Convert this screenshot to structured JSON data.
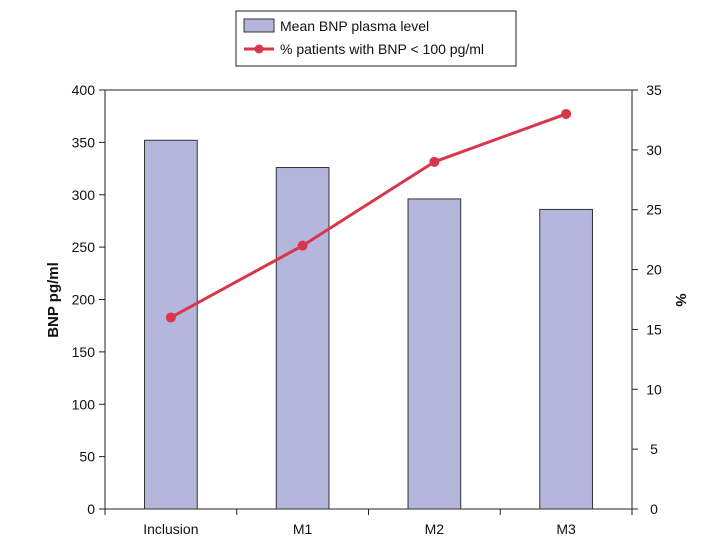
{
  "chart_data": {
    "type": "bar",
    "categories": [
      "Inclusion",
      "M1",
      "M2",
      "M3"
    ],
    "series": [
      {
        "name": "Mean BNP plasma level",
        "type": "bar",
        "axis": "left",
        "values": [
          352,
          326,
          296,
          286
        ],
        "color": "#b4b6dc"
      },
      {
        "name": "% patients with BNP < 100 pg/ml",
        "type": "line",
        "axis": "right",
        "values": [
          16,
          22,
          29,
          33
        ],
        "color": "#d8364a"
      }
    ],
    "ylabel": "BNP pg/ml",
    "y2label": "%",
    "ylim": [
      0,
      400
    ],
    "y2lim": [
      0,
      35
    ],
    "yticks": [
      0,
      50,
      100,
      150,
      200,
      250,
      300,
      350,
      400
    ],
    "y2ticks": [
      0,
      5,
      10,
      15,
      20,
      25,
      30,
      35
    ],
    "grid": false,
    "legend_position": "top-center"
  }
}
